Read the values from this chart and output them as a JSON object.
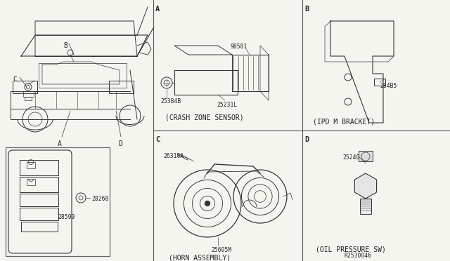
{
  "bg_color": "#f5f5f0",
  "fig_width": 6.4,
  "fig_height": 3.72,
  "dpi": 100,
  "part_numbers": {
    "crash_sensor_top": "98581",
    "crash_sensor_left": "25384B",
    "crash_sensor_right": "25231L",
    "ipdm_bracket": "284B5",
    "horn_bolt": "26310A",
    "horn_main": "25605M",
    "oil_sw": "25240",
    "key_fob_remote": "28268",
    "key_fob_body": "28599"
  },
  "labels": {
    "crash_zone": "(CRASH ZONE SENSOR)",
    "ipdm_bracket": "(IPD M BRACKET)",
    "horn_assembly": "(HORN ASSEMBLY)",
    "oil_pressure": "(OIL PRESSURE SW)",
    "ref_number": "R2530046"
  },
  "section_letters": [
    "A",
    "B",
    "C",
    "D"
  ],
  "dividers": {
    "vertical1": 218,
    "vertical2": 430,
    "horizontal": 186
  }
}
